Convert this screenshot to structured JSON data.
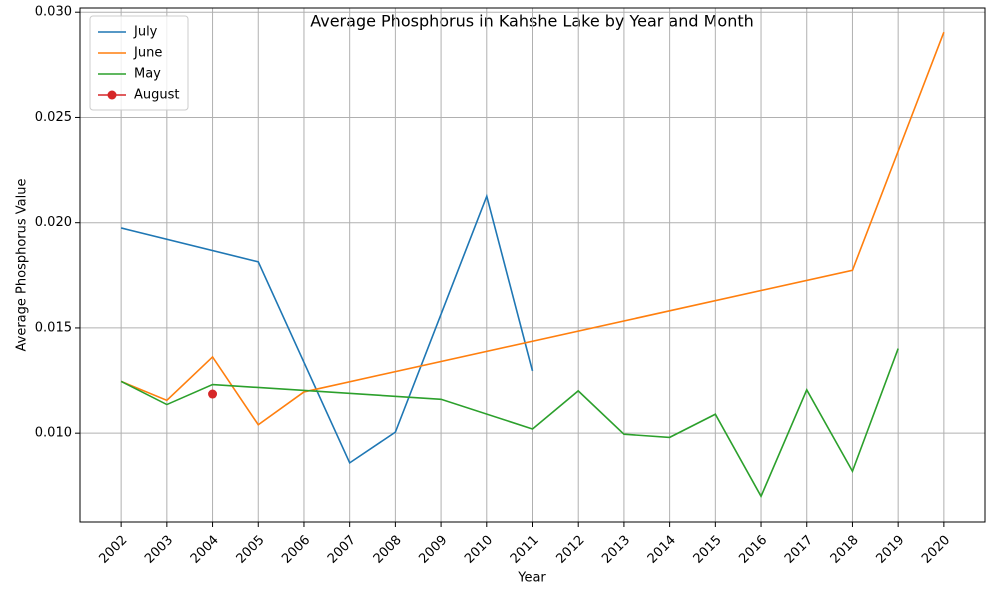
{
  "chart_data": {
    "type": "line",
    "title": "Average Phosphorus in Kahshe Lake by Year and Month",
    "x_label": "Year",
    "y_label": "Average Phosphorus Value",
    "series": [
      {
        "name": "July",
        "color": "#1f77b4",
        "markers": false,
        "x": [
          2002,
          2005,
          2007,
          2008,
          2010,
          2011
        ],
        "values": [
          0.01975,
          0.01814,
          0.00859,
          0.01005,
          0.02126,
          0.01296
        ]
      },
      {
        "name": "June",
        "color": "#ff7f0e",
        "markers": false,
        "x": [
          2002,
          2003,
          2004,
          2005,
          2006,
          2018,
          2020
        ],
        "values": [
          0.01246,
          0.01156,
          0.01362,
          0.0104,
          0.01196,
          0.01774,
          0.02905
        ]
      },
      {
        "name": "May",
        "color": "#2ca02c",
        "markers": false,
        "x": [
          2002,
          2003,
          2004,
          2009,
          2011,
          2012,
          2013,
          2014,
          2015,
          2016,
          2017,
          2018,
          2019
        ],
        "values": [
          0.01246,
          0.01136,
          0.01231,
          0.01161,
          0.0102,
          0.01201,
          0.00995,
          0.0098,
          0.0109,
          0.007,
          0.01206,
          0.00819,
          0.01402
        ]
      },
      {
        "name": "August",
        "color": "#d62728",
        "markers": true,
        "x": [
          2004
        ],
        "values": [
          0.01186
        ]
      }
    ],
    "xlim": [
      2001.1,
      2020.9
    ],
    "xticks": [
      2002,
      2003,
      2004,
      2005,
      2006,
      2007,
      2008,
      2009,
      2010,
      2011,
      2012,
      2013,
      2014,
      2015,
      2016,
      2017,
      2018,
      2019,
      2020
    ],
    "ylim": [
      0.00578,
      0.0302
    ],
    "yticks": [
      {
        "value": 0.01,
        "label": "0.010"
      },
      {
        "value": 0.015,
        "label": "0.015"
      },
      {
        "value": 0.02,
        "label": "0.020"
      },
      {
        "value": 0.025,
        "label": "0.025"
      },
      {
        "value": 0.03,
        "label": "0.030"
      }
    ],
    "grid": true,
    "legend": "upper-left"
  }
}
